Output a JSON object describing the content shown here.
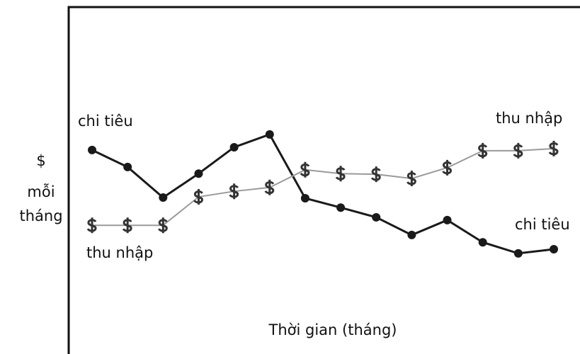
{
  "chart_data": {
    "type": "line",
    "x_label": "Thời gian (tháng)",
    "y_label": [
      "$",
      "mỗi",
      "tháng"
    ],
    "categories": [
      null,
      null,
      null,
      null,
      null,
      null,
      null,
      null,
      null,
      null,
      null,
      null,
      null,
      null
    ],
    "ylim": [
      0,
      100
    ],
    "series": [
      {
        "name": "chi tiêu",
        "color": "#1a1a1a",
        "marker": "circle",
        "values": [
          58.8,
          53.9,
          45.1,
          52.0,
          59.6,
          63.3,
          44.9,
          42.2,
          39.4,
          34.3,
          38.6,
          32.2,
          29.0,
          30.2
        ]
      },
      {
        "name": "thu nhập",
        "color": "#9a9a9a",
        "marker": "dollar",
        "values": [
          37.1,
          37.1,
          37.1,
          45.3,
          46.9,
          48.0,
          53.1,
          52.0,
          51.8,
          50.6,
          53.7,
          58.6,
          58.6,
          59.2
        ]
      }
    ],
    "annotations": [
      "thu nhập",
      "chi tiêu"
    ]
  }
}
